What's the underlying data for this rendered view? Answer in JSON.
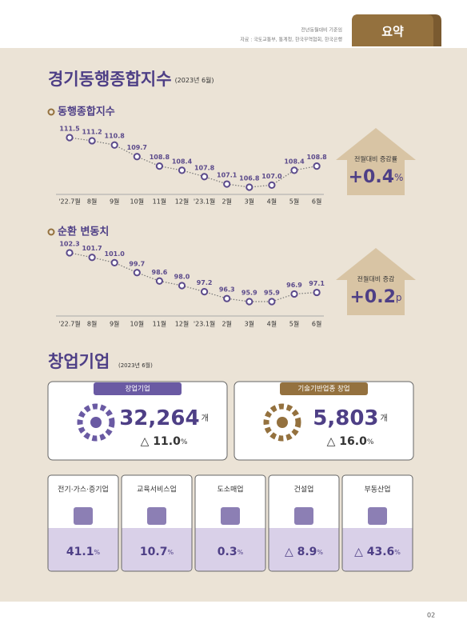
{
  "header": {
    "note": "전년동월대비 기준임",
    "source": "자료 : 국토교통부, 통계청, 한국무역협회, 한국은행",
    "tab": "요약"
  },
  "section1": {
    "title": "경기동행종합지수",
    "subtitle": "(2023년 6월)"
  },
  "chart_data": [
    {
      "type": "line",
      "title": "동행종합지수",
      "categories": [
        "'22.7월",
        "8월",
        "9월",
        "10월",
        "11월",
        "12월",
        "'23.1월",
        "2월",
        "3월",
        "4월",
        "5월",
        "6월"
      ],
      "values": [
        111.5,
        111.2,
        110.8,
        109.7,
        108.8,
        108.4,
        107.8,
        107.1,
        106.8,
        107.0,
        108.4,
        108.8
      ],
      "value_labels": [
        "111.5",
        "111.2",
        "110.8",
        "109.7",
        "108.8",
        "108.4",
        "107.8",
        "107.1",
        "106.8",
        "107.0",
        "108.4",
        "108.8"
      ],
      "color": "#5b4a8b",
      "change": {
        "label": "전월대비 증감률",
        "value": "+0.4",
        "unit": "%"
      }
    },
    {
      "type": "line",
      "title": "순환 변동치",
      "categories": [
        "'22.7월",
        "8월",
        "9월",
        "10월",
        "11월",
        "12월",
        "'23.1월",
        "2월",
        "3월",
        "4월",
        "5월",
        "6월"
      ],
      "values": [
        102.3,
        101.7,
        101.0,
        99.7,
        98.6,
        98.0,
        97.2,
        96.3,
        95.9,
        95.9,
        96.9,
        97.1
      ],
      "value_labels": [
        "102.3",
        "101.7",
        "101.0",
        "99.7",
        "98.6",
        "98.0",
        "97.2",
        "96.3",
        "95.9",
        "95.9",
        "96.9",
        "97.1"
      ],
      "color": "#5b4a8b",
      "change": {
        "label": "전월대비 증감",
        "value": "+0.2",
        "unit": "p"
      }
    }
  ],
  "section2": {
    "title": "창업기업",
    "subtitle": "(2023년 6월)",
    "cards": [
      {
        "label": "창업기업",
        "value": "32,264",
        "unit": "개",
        "change": "△ 11.0",
        "change_unit": "%"
      },
      {
        "label": "기술기반업종 창업",
        "value": "5,803",
        "unit": "개",
        "change": "△ 16.0",
        "change_unit": "%"
      }
    ],
    "sectors": [
      {
        "name": "전기·가스·증기업",
        "value": "41.1",
        "unit": "%"
      },
      {
        "name": "교육서비스업",
        "value": "10.7",
        "unit": "%"
      },
      {
        "name": "도소매업",
        "value": "0.3",
        "unit": "%"
      },
      {
        "name": "건설업",
        "value": "△ 8.9",
        "unit": "%"
      },
      {
        "name": "부동산업",
        "value": "△ 43.6",
        "unit": "%"
      }
    ]
  },
  "footer": {
    "page": "02"
  }
}
